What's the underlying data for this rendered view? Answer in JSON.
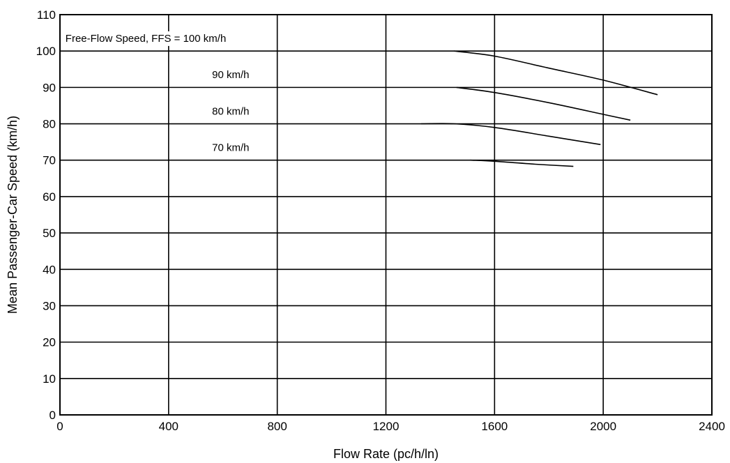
{
  "chart_data": {
    "type": "line",
    "title": "",
    "xlabel": "Flow Rate (pc/h/ln)",
    "ylabel": "Mean Passenger-Car Speed (km/h)",
    "xlim": [
      0,
      2400
    ],
    "ylim": [
      0,
      110
    ],
    "x_ticks": [
      0,
      400,
      800,
      1200,
      1600,
      2000,
      2400
    ],
    "x_tick_labels": [
      "0",
      "400",
      "800",
      "1200",
      "1600",
      "2000",
      "2400"
    ],
    "y_ticks": [
      0,
      10,
      20,
      30,
      40,
      50,
      60,
      70,
      80,
      90,
      100,
      110
    ],
    "y_tick_labels": [
      "0",
      "10",
      "20",
      "30",
      "40",
      "50",
      "60",
      "70",
      "80",
      "90",
      "100",
      "110"
    ],
    "grid": true,
    "series": [
      {
        "name": "Free-Flow Speed, FFS = 100 km/h",
        "x": [
          1450,
          1600,
          1800,
          2000,
          2200
        ],
        "y": [
          100,
          98.6,
          95.3,
          92.0,
          88.0
        ]
      },
      {
        "name": "90 km/h",
        "x": [
          1460,
          1600,
          1800,
          2000,
          2100
        ],
        "y": [
          90,
          88.6,
          85.8,
          82.6,
          81.0
        ]
      },
      {
        "name": "80 km/h",
        "x": [
          1330,
          1450,
          1600,
          1800,
          1990
        ],
        "y": [
          80,
          80,
          79.0,
          76.6,
          74.3
        ]
      },
      {
        "name": "70 km/h",
        "x": [
          1510,
          1600,
          1750,
          1890
        ],
        "y": [
          70,
          69.7,
          68.9,
          68.3
        ]
      }
    ],
    "annotations": [
      {
        "text": "Free-Flow Speed, FFS = 100 km/h",
        "x": 20,
        "y": 103.5,
        "anchor": "start"
      },
      {
        "text": "90 km/h",
        "x": 560,
        "y": 93.5,
        "anchor": "start"
      },
      {
        "text": "80 km/h",
        "x": 560,
        "y": 83.5,
        "anchor": "start"
      },
      {
        "text": "70 km/h",
        "x": 560,
        "y": 73.5,
        "anchor": "start"
      }
    ]
  }
}
